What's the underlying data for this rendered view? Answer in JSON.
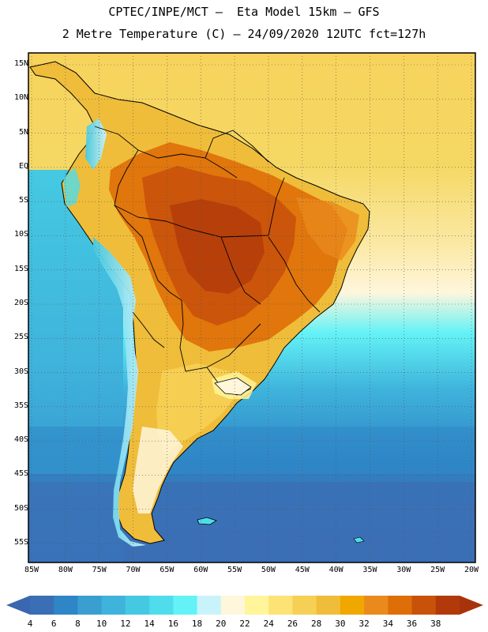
{
  "header": {
    "line1": "CPTEC/INPE/MCT –  Eta Model 15km – GFS",
    "line2": "2 Metre Temperature (C) – 24/09/2020 12UTC fct=127h"
  },
  "map": {
    "lat_labels": [
      "15N",
      "10N",
      "5N",
      "EQ",
      "5S",
      "10S",
      "15S",
      "20S",
      "25S",
      "30S",
      "35S",
      "40S",
      "45S",
      "50S",
      "55S"
    ],
    "lon_labels": [
      "85W",
      "80W",
      "75W",
      "70W",
      "65W",
      "60W",
      "55W",
      "50W",
      "45W",
      "40W",
      "35W",
      "30W",
      "25W",
      "20W"
    ],
    "lat_values": [
      15,
      10,
      5,
      0,
      -5,
      -10,
      -15,
      -20,
      -25,
      -30,
      -35,
      -40,
      -45,
      -50,
      -55
    ],
    "lon_values": [
      -85,
      -80,
      -75,
      -70,
      -65,
      -60,
      -55,
      -50,
      -45,
      -40,
      -35,
      -30,
      -25,
      -20
    ]
  },
  "colorbar": {
    "labels": [
      "4",
      "6",
      "8",
      "10",
      "12",
      "14",
      "16",
      "18",
      "20",
      "22",
      "24",
      "26",
      "28",
      "30",
      "32",
      "34",
      "36",
      "38"
    ],
    "colors": [
      "#3b6fb5",
      "#2f86c6",
      "#3a9fd0",
      "#3fb3dc",
      "#45c9e2",
      "#4fdcec",
      "#63f2f6",
      "#c9f3fb",
      "#fff6dc",
      "#fff59a",
      "#fde275",
      "#f6cf55",
      "#efbd3a",
      "#f0a700",
      "#ea8a1c",
      "#de6e08",
      "#c9520a",
      "#b23a0a"
    ]
  }
}
